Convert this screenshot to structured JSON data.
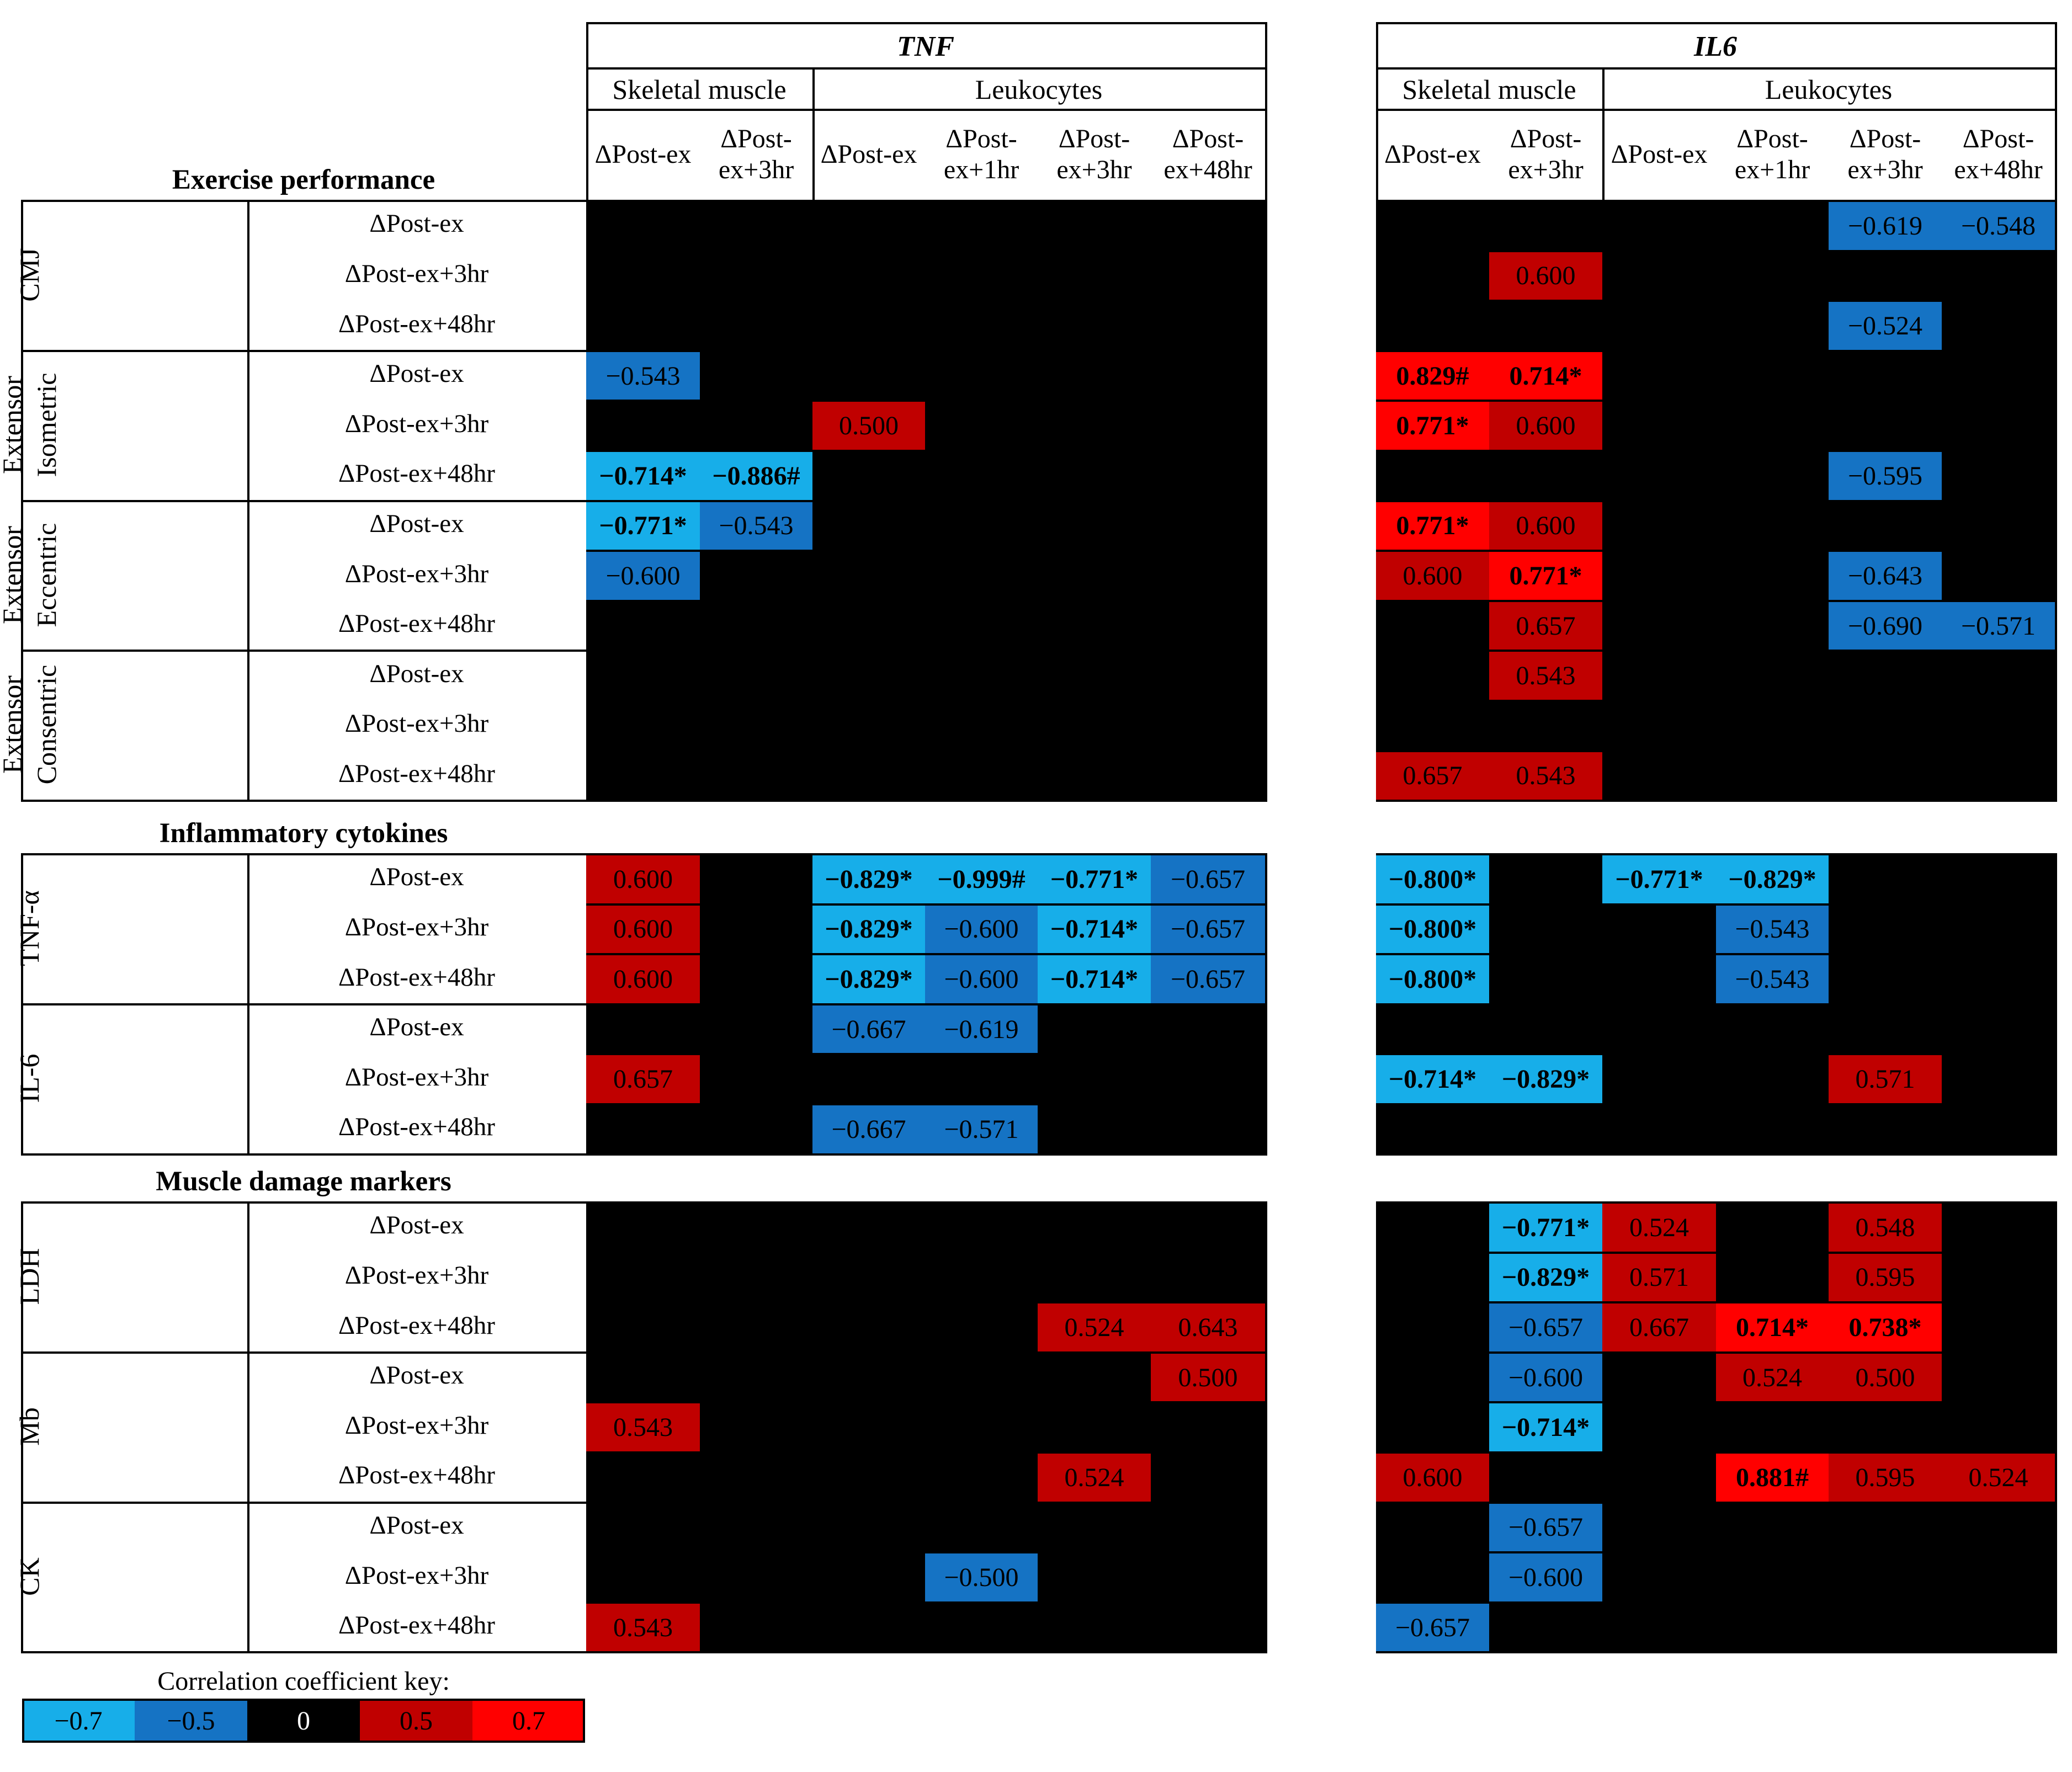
{
  "chart_data": {
    "type": "heatmap",
    "genes": [
      "TNF",
      "IL6"
    ],
    "tissues": [
      "Skeletal muscle",
      "Leukocytes"
    ],
    "tnf_columns": [
      {
        "tissue": "Skeletal muscle",
        "label": "ΔPost-ex"
      },
      {
        "tissue": "Skeletal muscle",
        "label": "ΔPost-ex+3hr"
      },
      {
        "tissue": "Leukocytes",
        "label": "ΔPost-ex"
      },
      {
        "tissue": "Leukocytes",
        "label": "ΔPost-ex+1hr"
      },
      {
        "tissue": "Leukocytes",
        "label": "ΔPost-ex+3hr"
      },
      {
        "tissue": "Leukocytes",
        "label": "ΔPost-ex+48hr"
      }
    ],
    "il6_columns": [
      {
        "tissue": "Skeletal muscle",
        "label": "ΔPost-ex"
      },
      {
        "tissue": "Skeletal muscle",
        "label": "ΔPost-ex+3hr"
      },
      {
        "tissue": "Leukocytes",
        "label": "ΔPost-ex"
      },
      {
        "tissue": "Leukocytes",
        "label": "ΔPost-ex+1hr"
      },
      {
        "tissue": "Leukocytes",
        "label": "ΔPost-ex+3hr"
      },
      {
        "tissue": "Leukocytes",
        "label": "ΔPost-ex+48hr"
      }
    ],
    "sections": [
      {
        "title": "Exercise performance",
        "groups": [
          {
            "label": "CMJ",
            "rows": [
              {
                "label": "ΔPost-ex",
                "tnf": [
                  "",
                  "",
                  "",
                  "",
                  "",
                  ""
                ],
                "il6": [
                  "",
                  "",
                  "",
                  "",
                  "-0.619",
                  "-0.548"
                ]
              },
              {
                "label": "ΔPost-ex+3hr",
                "tnf": [
                  "",
                  "",
                  "",
                  "",
                  "",
                  ""
                ],
                "il6": [
                  "",
                  "0.600",
                  "",
                  "",
                  "",
                  ""
                ]
              },
              {
                "label": "ΔPost-ex+48hr",
                "tnf": [
                  "",
                  "",
                  "",
                  "",
                  "",
                  ""
                ],
                "il6": [
                  "",
                  "",
                  "",
                  "",
                  "-0.524",
                  ""
                ]
              }
            ]
          },
          {
            "label": "Extensor Isometric",
            "rows": [
              {
                "label": "ΔPost-ex",
                "tnf": [
                  "-0.543",
                  "",
                  "",
                  "",
                  "",
                  ""
                ],
                "il6": [
                  "0.829#",
                  "0.714*",
                  "",
                  "",
                  "",
                  ""
                ]
              },
              {
                "label": "ΔPost-ex+3hr",
                "tnf": [
                  "",
                  "",
                  "0.500",
                  "",
                  "",
                  ""
                ],
                "il6": [
                  "0.771*",
                  "0.600",
                  "",
                  "",
                  "",
                  ""
                ]
              },
              {
                "label": "ΔPost-ex+48hr",
                "tnf": [
                  "-0.714*",
                  "-0.886#",
                  "",
                  "",
                  "",
                  ""
                ],
                "il6": [
                  "",
                  "",
                  "",
                  "",
                  "-0.595",
                  ""
                ]
              }
            ]
          },
          {
            "label": "Extensor Eccentric",
            "rows": [
              {
                "label": "ΔPost-ex",
                "tnf": [
                  "-0.771*",
                  "-0.543",
                  "",
                  "",
                  "",
                  ""
                ],
                "il6": [
                  "0.771*",
                  "0.600",
                  "",
                  "",
                  "",
                  ""
                ]
              },
              {
                "label": "ΔPost-ex+3hr",
                "tnf": [
                  "-0.600",
                  "",
                  "",
                  "",
                  "",
                  ""
                ],
                "il6": [
                  "0.600",
                  "0.771*",
                  "",
                  "",
                  "-0.643",
                  ""
                ]
              },
              {
                "label": "ΔPost-ex+48hr",
                "tnf": [
                  "",
                  "",
                  "",
                  "",
                  "",
                  ""
                ],
                "il6": [
                  "",
                  "0.657",
                  "",
                  "",
                  "-0.690",
                  "-0.571"
                ]
              }
            ]
          },
          {
            "label": "Extensor Consentric",
            "rows": [
              {
                "label": "ΔPost-ex",
                "tnf": [
                  "",
                  "",
                  "",
                  "",
                  "",
                  ""
                ],
                "il6": [
                  "",
                  "0.543",
                  "",
                  "",
                  "",
                  ""
                ]
              },
              {
                "label": "ΔPost-ex+3hr",
                "tnf": [
                  "",
                  "",
                  "",
                  "",
                  "",
                  ""
                ],
                "il6": [
                  "",
                  "",
                  "",
                  "",
                  "",
                  ""
                ]
              },
              {
                "label": "ΔPost-ex+48hr",
                "tnf": [
                  "",
                  "",
                  "",
                  "",
                  "",
                  ""
                ],
                "il6": [
                  "0.657",
                  "0.543",
                  "",
                  "",
                  "",
                  ""
                ]
              }
            ]
          }
        ]
      },
      {
        "title": "Inflammatory cytokines",
        "groups": [
          {
            "label": "TNF-α",
            "rows": [
              {
                "label": "ΔPost-ex",
                "tnf": [
                  "0.600",
                  "",
                  "-0.829*",
                  "-0.999#",
                  "-0.771*",
                  "-0.657"
                ],
                "il6": [
                  "-0.800*",
                  "",
                  "-0.771*",
                  "-0.829*",
                  "",
                  ""
                ]
              },
              {
                "label": "ΔPost-ex+3hr",
                "tnf": [
                  "0.600",
                  "",
                  "-0.829*",
                  "-0.600",
                  "-0.714*",
                  "-0.657"
                ],
                "il6": [
                  "-0.800*",
                  "",
                  "",
                  "-0.543",
                  "",
                  ""
                ]
              },
              {
                "label": "ΔPost-ex+48hr",
                "tnf": [
                  "0.600",
                  "",
                  "-0.829*",
                  "-0.600",
                  "-0.714*",
                  "-0.657"
                ],
                "il6": [
                  "-0.800*",
                  "",
                  "",
                  "-0.543",
                  "",
                  ""
                ]
              }
            ]
          },
          {
            "label": "IL-6",
            "rows": [
              {
                "label": "ΔPost-ex",
                "tnf": [
                  "",
                  "",
                  "-0.667",
                  "-0.619",
                  "",
                  ""
                ],
                "il6": [
                  "",
                  "",
                  "",
                  "",
                  "",
                  ""
                ]
              },
              {
                "label": "ΔPost-ex+3hr",
                "tnf": [
                  "0.657",
                  "",
                  "",
                  "",
                  "",
                  ""
                ],
                "il6": [
                  "-0.714*",
                  "-0.829*",
                  "",
                  "",
                  "0.571",
                  ""
                ]
              },
              {
                "label": "ΔPost-ex+48hr",
                "tnf": [
                  "",
                  "",
                  "-0.667",
                  "-0.571",
                  "",
                  ""
                ],
                "il6": [
                  "",
                  "",
                  "",
                  "",
                  "",
                  ""
                ]
              }
            ]
          }
        ]
      },
      {
        "title": "Muscle damage markers",
        "groups": [
          {
            "label": "LDH",
            "rows": [
              {
                "label": "ΔPost-ex",
                "tnf": [
                  "",
                  "",
                  "",
                  "",
                  "",
                  ""
                ],
                "il6": [
                  "",
                  "-0.771*",
                  "0.524",
                  "",
                  "0.548",
                  ""
                ]
              },
              {
                "label": "ΔPost-ex+3hr",
                "tnf": [
                  "",
                  "",
                  "",
                  "",
                  "",
                  ""
                ],
                "il6": [
                  "",
                  "-0.829*",
                  "0.571",
                  "",
                  "0.595",
                  ""
                ]
              },
              {
                "label": "ΔPost-ex+48hr",
                "tnf": [
                  "",
                  "",
                  "",
                  "",
                  "0.524",
                  "0.643"
                ],
                "il6": [
                  "",
                  "-0.657",
                  "0.667",
                  "0.714*",
                  "0.738*",
                  ""
                ]
              }
            ]
          },
          {
            "label": "Mb",
            "rows": [
              {
                "label": "ΔPost-ex",
                "tnf": [
                  "",
                  "",
                  "",
                  "",
                  "",
                  "0.500"
                ],
                "il6": [
                  "",
                  "-0.600",
                  "",
                  "0.524",
                  "0.500",
                  ""
                ]
              },
              {
                "label": "ΔPost-ex+3hr",
                "tnf": [
                  "0.543",
                  "",
                  "",
                  "",
                  "",
                  ""
                ],
                "il6": [
                  "",
                  "-0.714*",
                  "",
                  "",
                  "",
                  ""
                ]
              },
              {
                "label": "ΔPost-ex+48hr",
                "tnf": [
                  "",
                  "",
                  "",
                  "",
                  "0.524",
                  ""
                ],
                "il6": [
                  "0.600",
                  "",
                  "",
                  "0.881#",
                  "0.595",
                  "0.524"
                ]
              }
            ]
          },
          {
            "label": "CK",
            "rows": [
              {
                "label": "ΔPost-ex",
                "tnf": [
                  "",
                  "",
                  "",
                  "",
                  "",
                  ""
                ],
                "il6": [
                  "",
                  "-0.657",
                  "",
                  "",
                  "",
                  ""
                ]
              },
              {
                "label": "ΔPost-ex+3hr",
                "tnf": [
                  "",
                  "",
                  "",
                  "-0.500",
                  "",
                  ""
                ],
                "il6": [
                  "",
                  "-0.600",
                  "",
                  "",
                  "",
                  ""
                ]
              },
              {
                "label": "ΔPost-ex+48hr",
                "tnf": [
                  "0.543",
                  "",
                  "",
                  "",
                  "",
                  ""
                ],
                "il6": [
                  "-0.657",
                  "",
                  "",
                  "",
                  "",
                  ""
                ]
              }
            ]
          }
        ]
      }
    ],
    "key": {
      "title": "Correlation coefficient key:",
      "items": [
        {
          "label": "−0.7",
          "color": "#17aee9"
        },
        {
          "label": "−0.5",
          "color": "#1573c4"
        },
        {
          "label": "0",
          "color": "#000000"
        },
        {
          "label": "0.5",
          "color": "#c00000"
        },
        {
          "label": "0.7",
          "color": "#ff0000"
        }
      ]
    },
    "colors": {
      "strong_neg": "#17aee9",
      "mod_neg": "#1573c4",
      "none": "#000000",
      "mod_pos": "#c00000",
      "strong_pos": "#ff0000"
    }
  }
}
